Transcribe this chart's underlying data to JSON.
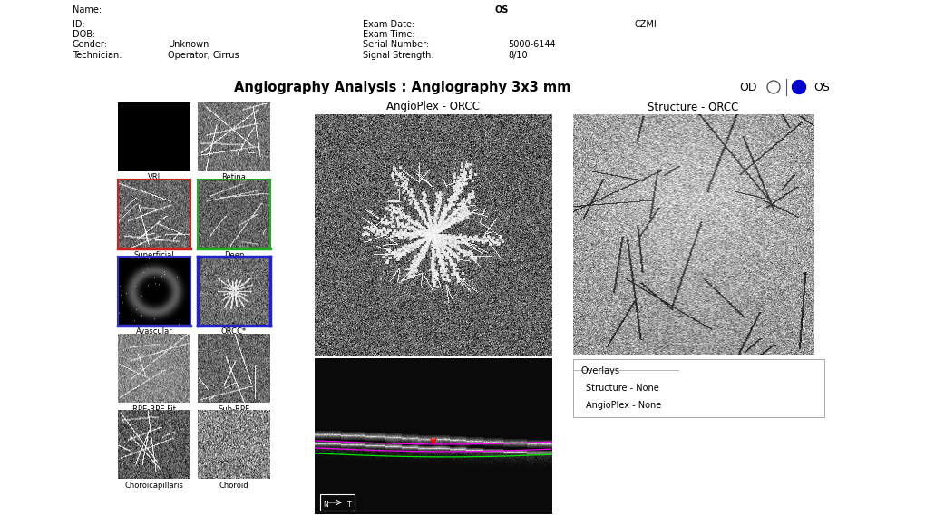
{
  "title_header": "Angiography Analysis : Angiography 3x3 mm",
  "bg_color": "#ffffff",
  "name_label": "Name:",
  "id_label": "ID:",
  "dob_label": "DOB:",
  "gender_label": "Gender:",
  "technician_label": "Technician:",
  "gender_value": "Unknown",
  "technician_value": "Operator, Cirrus",
  "os_label": "OS",
  "czmi_label": "CZMI",
  "exam_date_label": "Exam Date:",
  "exam_time_label": "Exam Time:",
  "serial_label": "Serial Number:",
  "signal_label": "Signal Strength:",
  "serial_value": "5000-6144",
  "signal_value": "8/10",
  "od_label": "OD",
  "os_right_label": "OS",
  "angioplex_title": "AngioPlex - ORCC",
  "structure_title": "Structure - ORCC",
  "overlays_title": "Overlays",
  "overlay_structure": "Structure - None",
  "overlay_angioplex": "AngioPlex - None",
  "thumb_labels": [
    "VRI",
    "Retina",
    "Superficial",
    "Deep",
    "Avascular",
    "ORCC*",
    "RPE-RPE Fit",
    "Sub-RPE",
    "Choroicapillaris",
    "Choroid"
  ],
  "zeiss_color": "#0055a5",
  "highlight_border": "#2222cc",
  "superficial_bar": "#cc2222",
  "deep_bar": "#22aa22",
  "avascular_bar": "#3333cc",
  "title_bar_color": "#d8d8d8",
  "font_size_header": 7.0,
  "font_size_title": 10.5,
  "font_size_thumb": 6.0,
  "font_size_overlay": 7.0,
  "os_dot_color": "#0000cc",
  "fig_width": 10.31,
  "fig_height": 5.8,
  "dpi": 100
}
